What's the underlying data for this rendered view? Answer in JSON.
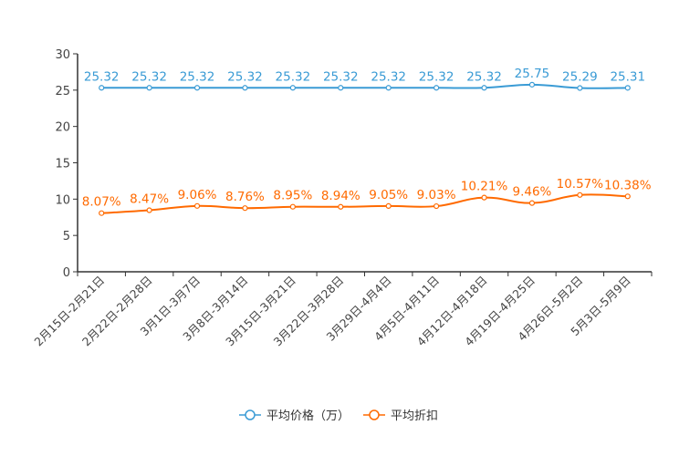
{
  "chart_data": {
    "type": "line",
    "title": "",
    "xlabel": "",
    "ylabel": "",
    "ylim": [
      0,
      30
    ],
    "yticks": [
      0,
      5,
      10,
      15,
      20,
      25,
      30
    ],
    "grid": false,
    "legend_position": "bottom-center",
    "categories": [
      "2月15日-2月21日",
      "2月22日-2月28日",
      "3月1日-3月7日",
      "3月8日-3月14日",
      "3月15日-3月21日",
      "3月22日-3月28日",
      "3月29日-4月4日",
      "4月5日-4月11日",
      "4月12日-4月18日",
      "4月19日-4月25日",
      "4月26日-5月2日",
      "5月3日-5月9日"
    ],
    "series": [
      {
        "name": "平均价格（万）",
        "color": "#3a9bd5",
        "values": [
          25.32,
          25.32,
          25.32,
          25.32,
          25.32,
          25.32,
          25.32,
          25.32,
          25.32,
          25.75,
          25.29,
          25.31
        ],
        "labels": [
          "25.32",
          "25.32",
          "25.32",
          "25.32",
          "25.32",
          "25.32",
          "25.32",
          "25.32",
          "25.32",
          "25.75",
          "25.29",
          "25.31"
        ]
      },
      {
        "name": "平均折扣",
        "color": "#ff6a00",
        "values": [
          8.07,
          8.47,
          9.06,
          8.76,
          8.95,
          8.94,
          9.05,
          9.03,
          10.21,
          9.46,
          10.57,
          10.38
        ],
        "labels": [
          "8.07%",
          "8.47%",
          "9.06%",
          "8.76%",
          "8.95%",
          "8.94%",
          "9.05%",
          "9.03%",
          "10.21%",
          "9.46%",
          "10.57%",
          "10.38%"
        ]
      }
    ]
  }
}
